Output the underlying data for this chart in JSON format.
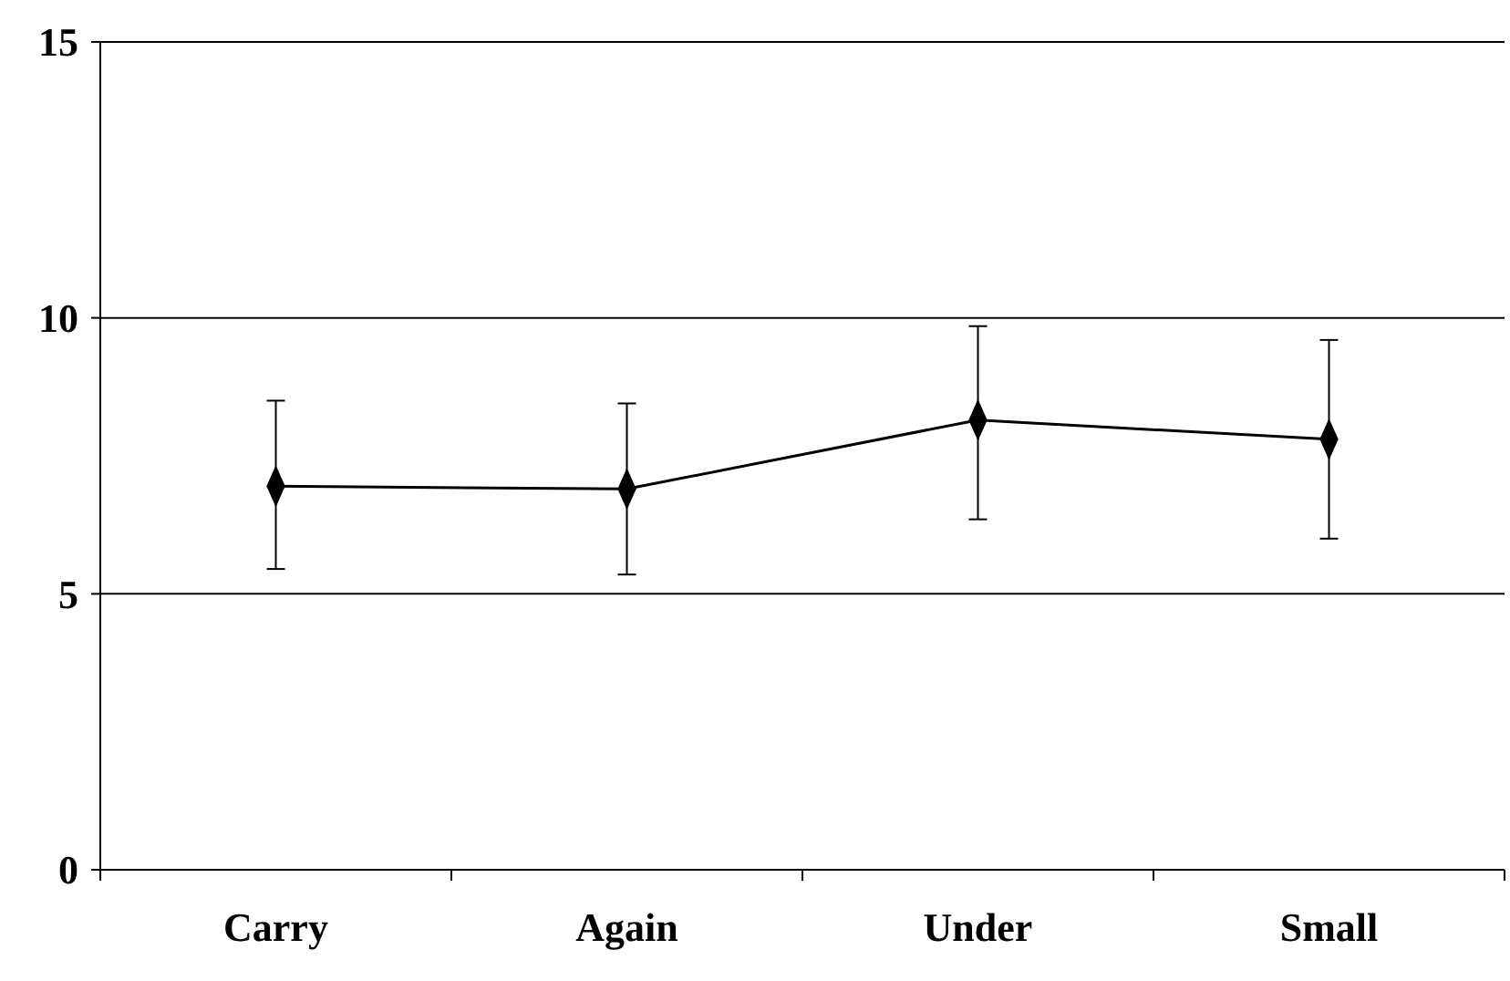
{
  "chart_data": {
    "type": "line",
    "categories": [
      "Carry",
      "Again",
      "Under",
      "Small"
    ],
    "series": [
      {
        "color": "#000000",
        "values": [
          6.95,
          6.9,
          8.15,
          7.8
        ],
        "errors": [
          [
            5.45,
            8.5
          ],
          [
            5.35,
            8.45
          ],
          [
            6.35,
            9.85
          ],
          [
            6.0,
            9.6
          ]
        ]
      }
    ],
    "ylim": [
      0,
      15
    ],
    "yticks": [
      0,
      5,
      10,
      15
    ],
    "grid": "y",
    "marker": "diamond",
    "line_style": "solid"
  }
}
